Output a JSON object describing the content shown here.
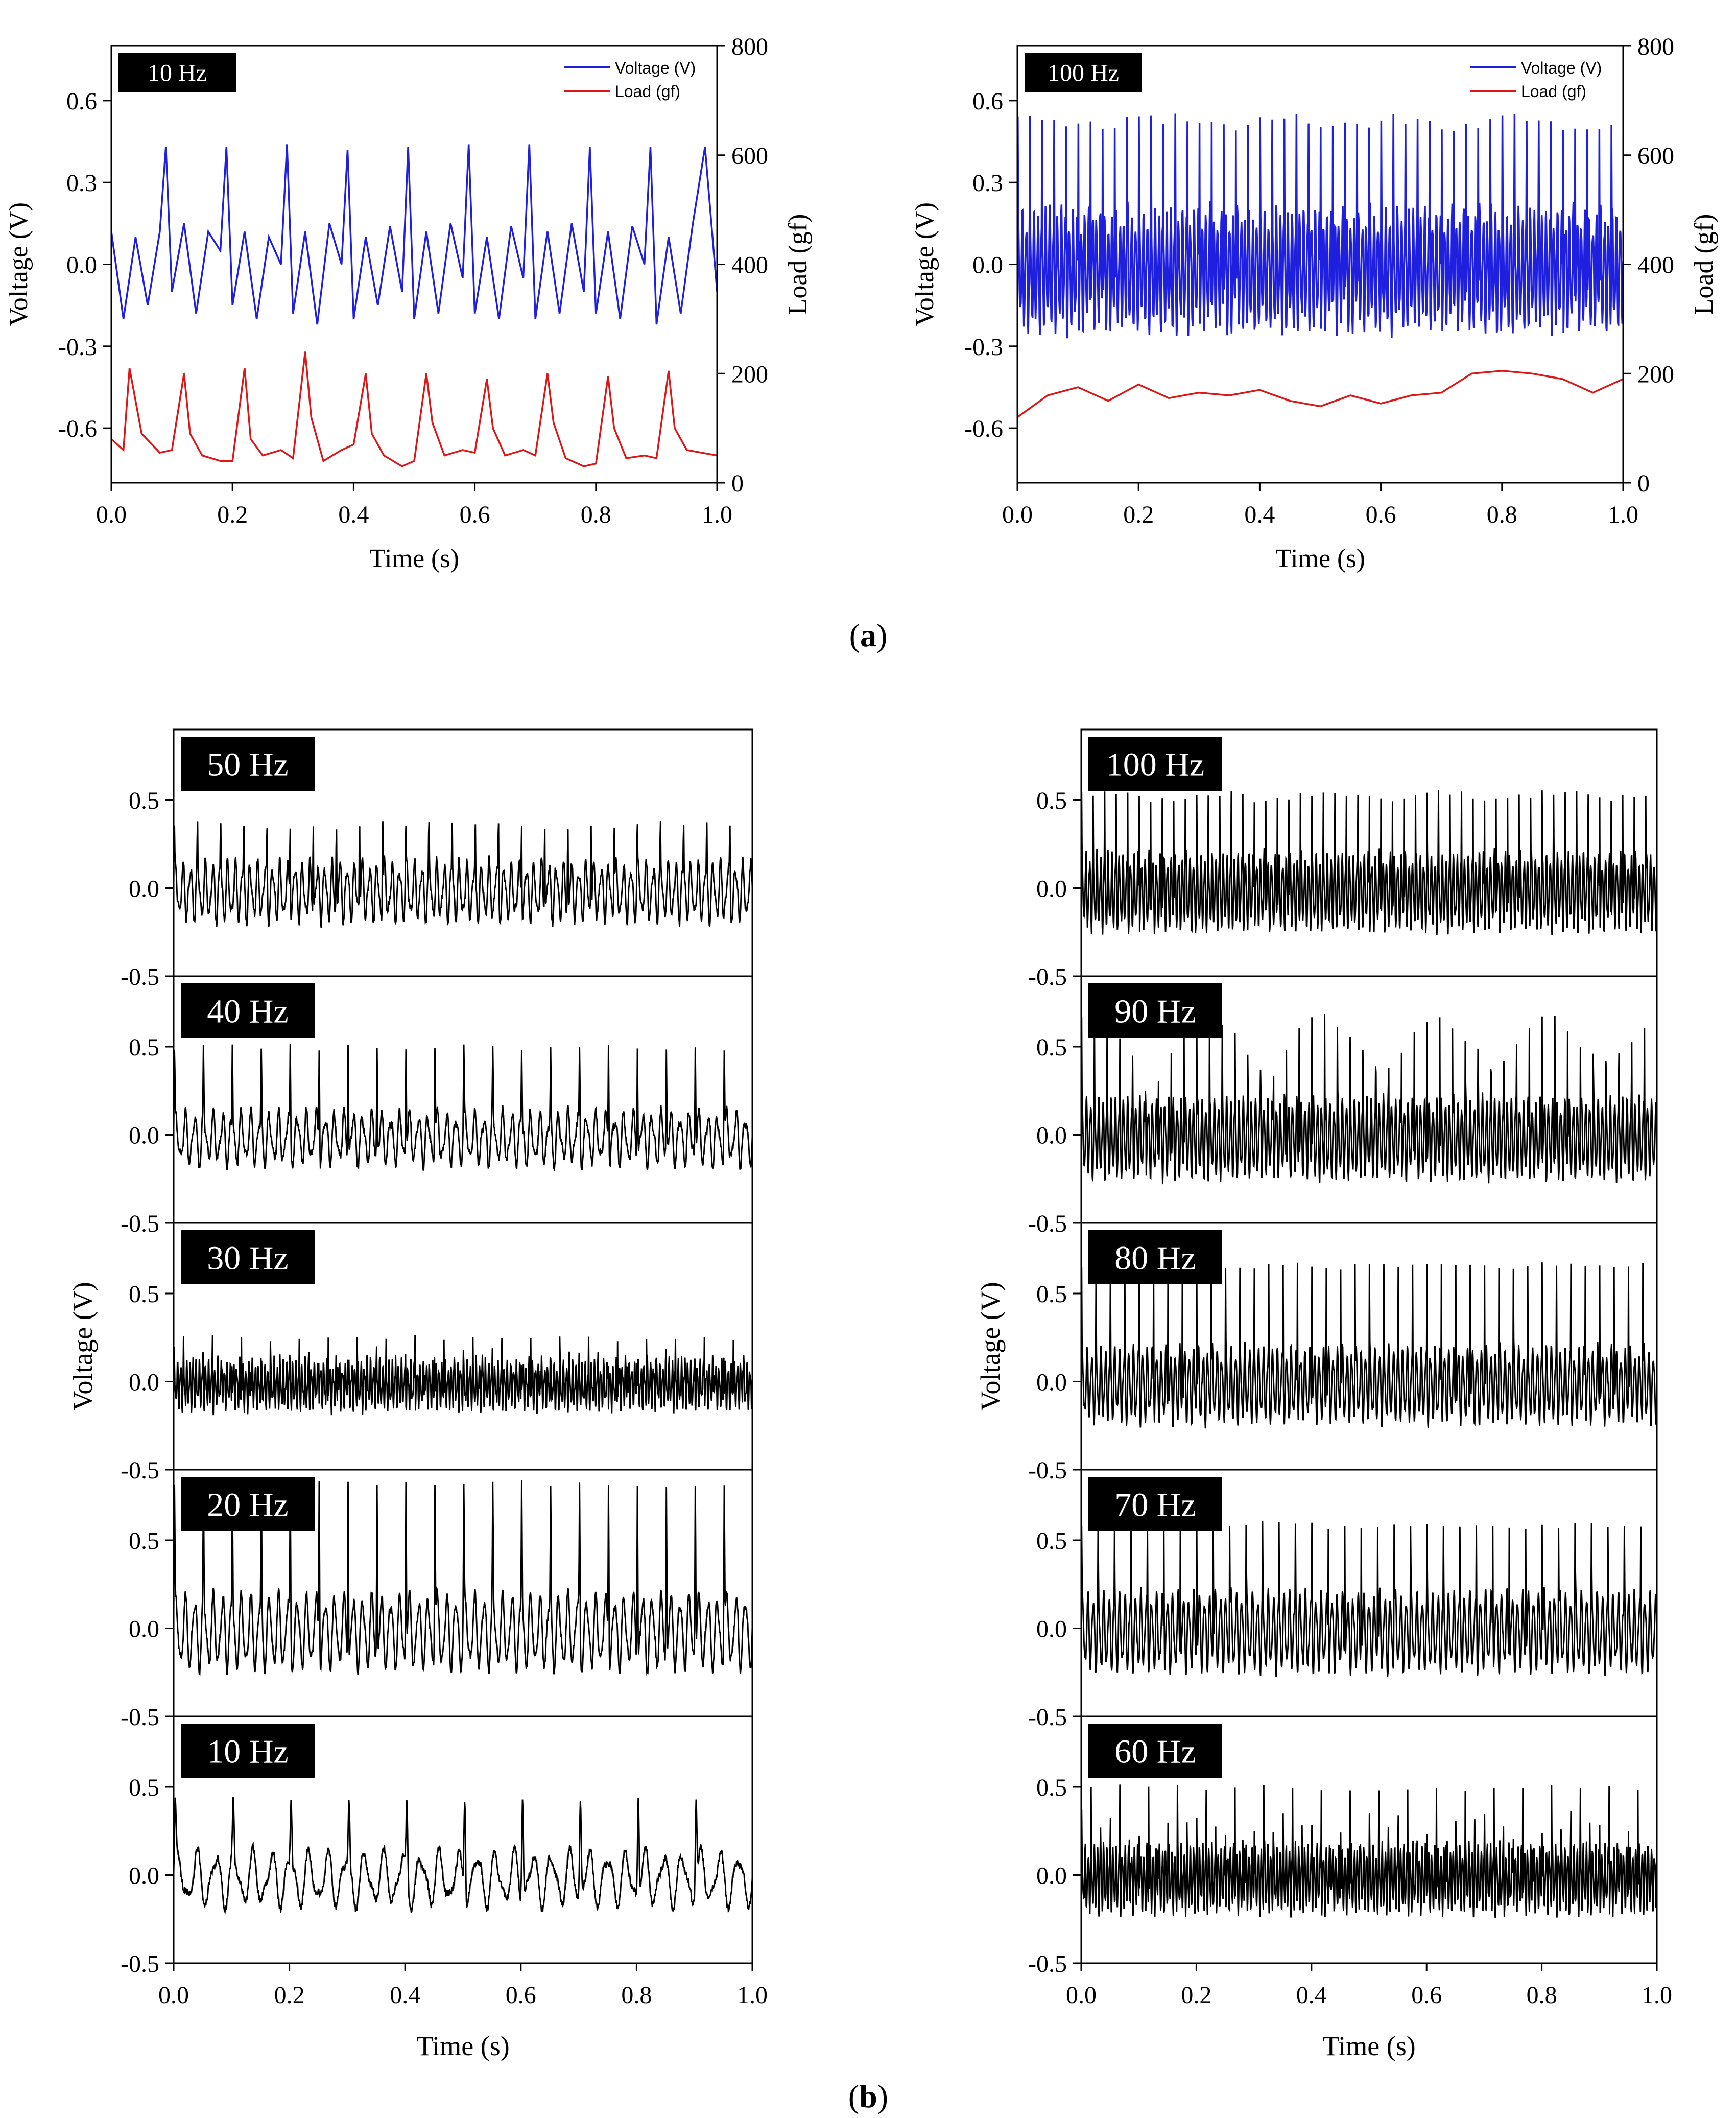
{
  "figure": {
    "panel_a_label": "a",
    "panel_b_label": "b"
  },
  "chart_data": [
    {
      "panel": "a",
      "type": "line",
      "tag": "10 Hz",
      "xlabel": "Time (s)",
      "ylabel": "Voltage (V)",
      "y2label": "Load (gf)",
      "xlim": [
        0.0,
        1.0
      ],
      "ylim": [
        -0.8,
        0.8
      ],
      "y2lim": [
        0,
        800
      ],
      "xticks": [
        "0.0",
        "0.2",
        "0.4",
        "0.6",
        "0.8",
        "1.0"
      ],
      "yticks": [
        "-0.6",
        "-0.3",
        "0.0",
        "0.3",
        "0.6"
      ],
      "y2ticks": [
        "0",
        "200",
        "400",
        "600",
        "800"
      ],
      "legend_position": "top-right",
      "series": [
        {
          "name": "Voltage (V)",
          "axis": "left",
          "color": "#1f1fe0",
          "x": [
            0.0,
            0.02,
            0.04,
            0.06,
            0.08,
            0.09,
            0.1,
            0.12,
            0.14,
            0.16,
            0.18,
            0.19,
            0.2,
            0.22,
            0.24,
            0.26,
            0.28,
            0.29,
            0.3,
            0.32,
            0.34,
            0.36,
            0.38,
            0.39,
            0.4,
            0.42,
            0.44,
            0.46,
            0.48,
            0.49,
            0.5,
            0.52,
            0.54,
            0.56,
            0.58,
            0.59,
            0.6,
            0.62,
            0.64,
            0.66,
            0.68,
            0.69,
            0.7,
            0.72,
            0.74,
            0.76,
            0.78,
            0.79,
            0.8,
            0.82,
            0.84,
            0.86,
            0.88,
            0.89,
            0.9,
            0.92,
            0.94,
            0.96,
            0.98,
            1.0
          ],
          "y": [
            0.12,
            -0.2,
            0.1,
            -0.15,
            0.12,
            0.43,
            -0.1,
            0.15,
            -0.18,
            0.12,
            0.05,
            0.43,
            -0.15,
            0.12,
            -0.2,
            0.1,
            0.0,
            0.44,
            -0.18,
            0.12,
            -0.22,
            0.15,
            0.0,
            0.42,
            -0.2,
            0.1,
            -0.15,
            0.14,
            -0.1,
            0.43,
            -0.2,
            0.12,
            -0.18,
            0.15,
            -0.05,
            0.44,
            -0.18,
            0.1,
            -0.2,
            0.14,
            -0.05,
            0.44,
            -0.2,
            0.12,
            -0.18,
            0.15,
            -0.1,
            0.43,
            -0.18,
            0.12,
            -0.2,
            0.14,
            0.0,
            0.43,
            -0.22,
            0.1,
            -0.18,
            0.15,
            0.43,
            -0.1
          ]
        },
        {
          "name": "Load (gf)",
          "axis": "right",
          "color": "#e01515",
          "x": [
            0.0,
            0.02,
            0.03,
            0.05,
            0.08,
            0.1,
            0.12,
            0.13,
            0.15,
            0.18,
            0.2,
            0.22,
            0.23,
            0.25,
            0.28,
            0.3,
            0.32,
            0.33,
            0.35,
            0.38,
            0.4,
            0.42,
            0.43,
            0.45,
            0.48,
            0.5,
            0.52,
            0.53,
            0.55,
            0.58,
            0.6,
            0.62,
            0.63,
            0.65,
            0.68,
            0.7,
            0.72,
            0.73,
            0.75,
            0.78,
            0.8,
            0.82,
            0.83,
            0.85,
            0.88,
            0.9,
            0.92,
            0.93,
            0.95,
            1.0
          ],
          "y": [
            80,
            60,
            210,
            90,
            55,
            60,
            200,
            90,
            50,
            40,
            40,
            210,
            80,
            50,
            60,
            45,
            240,
            120,
            40,
            60,
            70,
            200,
            90,
            50,
            30,
            40,
            200,
            110,
            50,
            60,
            55,
            190,
            100,
            50,
            60,
            50,
            200,
            110,
            45,
            30,
            35,
            195,
            100,
            45,
            50,
            45,
            205,
            100,
            60,
            50
          ]
        }
      ]
    },
    {
      "panel": "a",
      "type": "line",
      "tag": "100 Hz",
      "xlabel": "Time (s)",
      "ylabel": "Voltage (V)",
      "y2label": "Load (gf)",
      "xlim": [
        0.0,
        1.0
      ],
      "ylim": [
        -0.8,
        0.8
      ],
      "y2lim": [
        0,
        800
      ],
      "xticks": [
        "0.0",
        "0.2",
        "0.4",
        "0.6",
        "0.8",
        "1.0"
      ],
      "yticks": [
        "-0.6",
        "-0.3",
        "0.0",
        "0.3",
        "0.6"
      ],
      "y2ticks": [
        "0",
        "200",
        "400",
        "600",
        "800"
      ],
      "legend_position": "top-right",
      "series": [
        {
          "name": "Voltage (V)",
          "axis": "left",
          "color": "#1f1fe0",
          "frequency_hz": 50,
          "peak": 0.58,
          "trough": -0.32
        },
        {
          "name": "Load (gf)",
          "axis": "right",
          "color": "#e01515",
          "x": [
            0.0,
            0.05,
            0.1,
            0.15,
            0.2,
            0.25,
            0.3,
            0.35,
            0.4,
            0.45,
            0.5,
            0.55,
            0.6,
            0.65,
            0.7,
            0.75,
            0.8,
            0.85,
            0.9,
            0.95,
            1.0
          ],
          "y": [
            120,
            160,
            175,
            150,
            180,
            155,
            165,
            160,
            170,
            150,
            140,
            160,
            145,
            160,
            165,
            200,
            205,
            200,
            190,
            165,
            190
          ]
        }
      ]
    },
    {
      "panel": "b",
      "type": "line",
      "tag": "50 Hz",
      "ylim": [
        -0.5,
        0.9
      ],
      "yticks": [
        "-0.5",
        "0.0",
        "0.5"
      ],
      "series": [
        {
          "name": "",
          "frequency_hz": 25,
          "peak": 0.4,
          "trough": -0.25
        }
      ]
    },
    {
      "panel": "b",
      "type": "line",
      "tag": "40 Hz",
      "ylim": [
        -0.5,
        0.9
      ],
      "yticks": [
        "-0.5",
        "0.0",
        "0.5"
      ],
      "series": [
        {
          "name": "",
          "frequency_hz": 20,
          "peak": 0.5,
          "trough": -0.2
        }
      ]
    },
    {
      "panel": "b",
      "type": "line",
      "tag": "30 Hz",
      "ylim": [
        -0.5,
        0.9
      ],
      "yticks": [
        "-0.5",
        "0.0",
        "0.5"
      ],
      "series": [
        {
          "name": "",
          "frequency_hz": 60,
          "peak": 0.25,
          "trough": -0.2
        }
      ]
    },
    {
      "panel": "b",
      "type": "line",
      "tag": "20 Hz",
      "ylim": [
        -0.5,
        0.9
      ],
      "yticks": [
        "-0.5",
        "0.0",
        "0.5"
      ],
      "series": [
        {
          "name": "",
          "frequency_hz": 20,
          "peak": 0.83,
          "trough": -0.28
        }
      ]
    },
    {
      "panel": "b",
      "type": "line",
      "tag": "10 Hz",
      "ylim": [
        -0.5,
        0.9
      ],
      "yticks": [
        "-0.5",
        "0.0",
        "0.5"
      ],
      "xticks": [
        "0.0",
        "0.2",
        "0.4",
        "0.6",
        "0.8",
        "1.0"
      ],
      "xlabel": "Time (s)",
      "ylabel": "Voltage (V)",
      "series": [
        {
          "name": "",
          "frequency_hz": 10,
          "peak": 0.43,
          "trough": -0.22
        }
      ]
    },
    {
      "panel": "b",
      "type": "line",
      "tag": "100 Hz",
      "ylim": [
        -0.5,
        0.9
      ],
      "yticks": [
        "-0.5",
        "0.0",
        "0.5"
      ],
      "series": [
        {
          "name": "",
          "frequency_hz": 50,
          "peak": 0.58,
          "trough": -0.32
        }
      ]
    },
    {
      "panel": "b",
      "type": "line",
      "tag": "90 Hz",
      "ylim": [
        -0.5,
        0.9
      ],
      "yticks": [
        "-0.5",
        "0.0",
        "0.5"
      ],
      "series": [
        {
          "name": "",
          "frequency_hz": 45,
          "peak": 0.67,
          "trough": -0.33
        }
      ]
    },
    {
      "panel": "b",
      "type": "line",
      "tag": "80 Hz",
      "ylim": [
        -0.5,
        0.9
      ],
      "yticks": [
        "-0.5",
        "0.0",
        "0.5"
      ],
      "series": [
        {
          "name": "",
          "frequency_hz": 40,
          "peak": 0.66,
          "trough": -0.3
        }
      ]
    },
    {
      "panel": "b",
      "type": "line",
      "tag": "70 Hz",
      "ylim": [
        -0.5,
        0.9
      ],
      "yticks": [
        "-0.5",
        "0.0",
        "0.5"
      ],
      "series": [
        {
          "name": "",
          "frequency_hz": 35,
          "peak": 0.63,
          "trough": -0.33
        }
      ]
    },
    {
      "panel": "b",
      "type": "line",
      "tag": "60 Hz",
      "ylim": [
        -0.5,
        0.9
      ],
      "yticks": [
        "-0.5",
        "0.0",
        "0.5"
      ],
      "xticks": [
        "0.0",
        "0.2",
        "0.4",
        "0.6",
        "0.8",
        "1.0"
      ],
      "xlabel": "Time (s)",
      "ylabel": "Voltage (V)",
      "series": [
        {
          "name": "",
          "frequency_hz": 60,
          "peak": 0.5,
          "trough": -0.28
        }
      ]
    }
  ]
}
